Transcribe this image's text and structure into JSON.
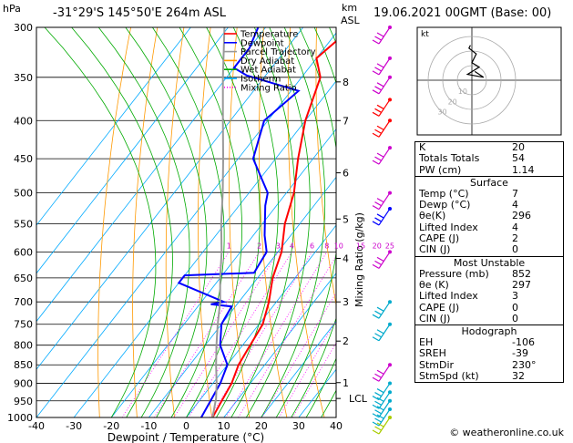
{
  "header": {
    "hpa_label": "hPa",
    "location": "-31°29'S 145°50'E 264m ASL",
    "km_label": "km",
    "asl_label": "ASL",
    "datetime": "19.06.2021 00GMT (Base: 00)"
  },
  "legend": [
    {
      "label": "Temperature",
      "color": "#ff0000",
      "dash": "solid"
    },
    {
      "label": "Dewpoint",
      "color": "#0000ff",
      "dash": "solid"
    },
    {
      "label": "Parcel Trajectory",
      "color": "#999999",
      "dash": "solid"
    },
    {
      "label": "Dry Adiabat",
      "color": "#ff9900",
      "dash": "solid"
    },
    {
      "label": "Wet Adiabat",
      "color": "#00aa00",
      "dash": "solid"
    },
    {
      "label": "Isotherm",
      "color": "#00aaff",
      "dash": "solid"
    },
    {
      "label": "Mixing Ratio",
      "color": "#ff00ff",
      "dash": "dotted"
    }
  ],
  "chart_data": {
    "type": "line",
    "xlabel": "Dewpoint / Temperature (°C)",
    "ylabel": "hPa",
    "xticks": [
      -40,
      -30,
      -20,
      -10,
      0,
      10,
      20,
      30,
      40
    ],
    "yticks": [
      300,
      350,
      400,
      450,
      500,
      550,
      600,
      650,
      700,
      750,
      800,
      850,
      900,
      950,
      1000
    ],
    "km_ticks": [
      {
        "label": "8",
        "p": 355
      },
      {
        "label": "7",
        "p": 400
      },
      {
        "label": "6",
        "p": 470
      },
      {
        "label": "5",
        "p": 542
      },
      {
        "label": "4",
        "p": 612
      },
      {
        "label": "3",
        "p": 700
      },
      {
        "label": "2",
        "p": 790
      },
      {
        "label": "1",
        "p": 898
      },
      {
        "label": "LCL",
        "p": 943
      }
    ],
    "mixing_ratio_label": "Mixing Ratio (g/kg)",
    "mixing_ratio_labels": [
      "1",
      "2",
      "3",
      "4",
      "6",
      "8",
      "10",
      "15",
      "20",
      "25"
    ],
    "series": [
      {
        "name": "Temperature",
        "color": "#ff0000",
        "points": [
          [
            7,
            1000
          ],
          [
            6,
            950
          ],
          [
            5,
            900
          ],
          [
            3,
            850
          ],
          [
            2,
            800
          ],
          [
            1,
            750
          ],
          [
            -2,
            700
          ],
          [
            -6,
            650
          ],
          [
            -9,
            600
          ],
          [
            -14,
            550
          ],
          [
            -18,
            500
          ],
          [
            -24,
            450
          ],
          [
            -30,
            400
          ],
          [
            -35,
            350
          ],
          [
            -40,
            330
          ],
          [
            -38,
            310
          ],
          [
            -38,
            300
          ]
        ]
      },
      {
        "name": "Dewpoint",
        "color": "#0000ff",
        "points": [
          [
            4,
            1000
          ],
          [
            3,
            950
          ],
          [
            2,
            900
          ],
          [
            0,
            850
          ],
          [
            -6,
            800
          ],
          [
            -10,
            750
          ],
          [
            -11,
            710
          ],
          [
            -17,
            705
          ],
          [
            -14,
            700
          ],
          [
            -30,
            660
          ],
          [
            -30,
            645
          ],
          [
            -12,
            640
          ],
          [
            -13,
            600
          ],
          [
            -17,
            570
          ],
          [
            -23,
            520
          ],
          [
            -25,
            500
          ],
          [
            -36,
            450
          ],
          [
            -41,
            400
          ],
          [
            -38,
            365
          ],
          [
            -55,
            348
          ],
          [
            -60,
            340
          ],
          [
            -60,
            320
          ],
          [
            -62,
            300
          ]
        ]
      },
      {
        "name": "Parcel Trajectory",
        "color": "#999999",
        "points": [
          [
            7,
            1000
          ],
          [
            4,
            943
          ],
          [
            1,
            900
          ],
          [
            -3,
            850
          ],
          [
            -7,
            800
          ],
          [
            -11,
            750
          ],
          [
            -15,
            700
          ],
          [
            -20,
            650
          ],
          [
            -25,
            600
          ],
          [
            -31,
            550
          ],
          [
            -37,
            500
          ],
          [
            -44,
            450
          ],
          [
            -52,
            400
          ],
          [
            -61,
            350
          ],
          [
            -71,
            300
          ]
        ]
      }
    ],
    "isotherms": [
      -80,
      -70,
      -60,
      -50,
      -40,
      -30,
      -20,
      -10,
      0,
      10,
      20,
      30,
      40
    ],
    "dry_adiabats_theta_k": [
      250,
      260,
      270,
      280,
      290,
      300,
      310,
      320,
      330,
      340,
      350,
      360,
      370,
      380,
      390,
      400,
      410,
      420
    ],
    "wet_adiabats_start_c": [
      -20,
      -16,
      -12,
      -8,
      -4,
      0,
      4,
      8,
      12,
      16,
      20,
      24,
      28,
      32,
      36
    ],
    "mixing_ratios_gkg": [
      1,
      2,
      3,
      4,
      6,
      8,
      10,
      15,
      20,
      25
    ],
    "wind_barbs": [
      {
        "p": 300,
        "color": "#cc00cc"
      },
      {
        "p": 330,
        "color": "#cc00cc"
      },
      {
        "p": 350,
        "color": "#cc00cc"
      },
      {
        "p": 375,
        "color": "#ff0000"
      },
      {
        "p": 400,
        "color": "#ff0000"
      },
      {
        "p": 435,
        "color": "#cc00cc"
      },
      {
        "p": 500,
        "color": "#cc00cc"
      },
      {
        "p": 525,
        "color": "#0000ff"
      },
      {
        "p": 600,
        "color": "#cc00cc"
      },
      {
        "p": 700,
        "color": "#00aacc"
      },
      {
        "p": 750,
        "color": "#00aacc"
      },
      {
        "p": 850,
        "color": "#cc00cc"
      },
      {
        "p": 900,
        "color": "#00aacc"
      },
      {
        "p": 925,
        "color": "#00aacc"
      },
      {
        "p": 950,
        "color": "#00aacc"
      },
      {
        "p": 975,
        "color": "#00aacc"
      },
      {
        "p": 1000,
        "color": "#aacc00"
      }
    ]
  },
  "hodograph": {
    "label": "kt",
    "ring_labels": [
      "10",
      "20",
      "30"
    ],
    "points": [
      [
        -1,
        24
      ],
      [
        -2,
        22
      ],
      [
        3,
        18
      ],
      [
        0,
        12
      ],
      [
        5,
        9
      ],
      [
        -3,
        4
      ],
      [
        8,
        2
      ],
      [
        2,
        6
      ]
    ]
  },
  "indices": {
    "top": [
      {
        "label": "K",
        "value": "20"
      },
      {
        "label": "Totals Totals",
        "value": "54"
      },
      {
        "label": "PW (cm)",
        "value": "1.14"
      }
    ],
    "surface": {
      "title": "Surface",
      "rows": [
        {
          "label": "Temp (°C)",
          "value": "7"
        },
        {
          "label": "Dewp (°C)",
          "value": "4"
        },
        {
          "label": "θe(K)",
          "value": "296"
        },
        {
          "label": "Lifted Index",
          "value": "4"
        },
        {
          "label": "CAPE (J)",
          "value": "2"
        },
        {
          "label": "CIN (J)",
          "value": "0"
        }
      ]
    },
    "unstable": {
      "title": "Most Unstable",
      "rows": [
        {
          "label": "Pressure (mb)",
          "value": "852"
        },
        {
          "label": "θe (K)",
          "value": "297"
        },
        {
          "label": "Lifted Index",
          "value": "3"
        },
        {
          "label": "CAPE (J)",
          "value": "0"
        },
        {
          "label": "CIN (J)",
          "value": "0"
        }
      ]
    },
    "hodograph": {
      "title": "Hodograph",
      "rows": [
        {
          "label": "EH",
          "value": "-106"
        },
        {
          "label": "SREH",
          "value": "-39"
        },
        {
          "label": "StmDir",
          "value": "230°"
        },
        {
          "label": "StmSpd (kt)",
          "value": "32"
        }
      ]
    }
  },
  "footer": "© weatheronline.co.uk"
}
